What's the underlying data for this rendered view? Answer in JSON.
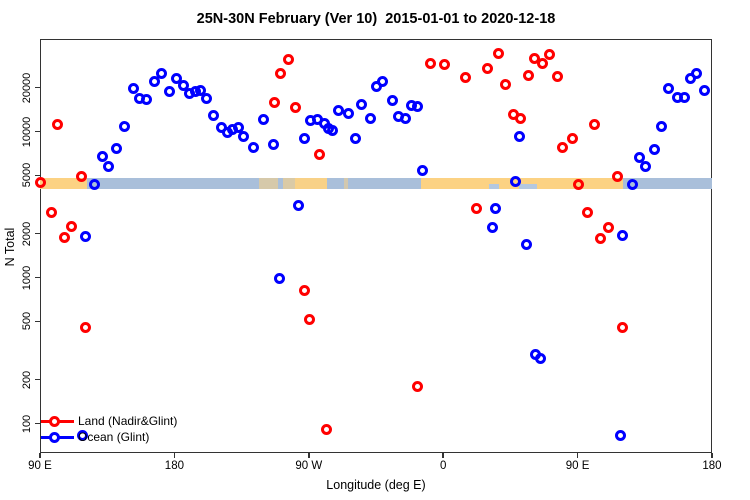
{
  "title": "25N-30N February (Ver 10)  2015-01-01 to 2020-12-18",
  "colors": {
    "land": "#ff0000",
    "ocean": "#0000ff",
    "band_ocean": "#a9bfda",
    "band_land": "#fcd283",
    "band_notch": "#b4c8e0",
    "axis": "#333333"
  },
  "legend": {
    "items": [
      {
        "label": "Land (Nadir&Glint)",
        "color": "#ff0000"
      },
      {
        "label": "Ocean (Glint)",
        "color": "#0000ff"
      }
    ]
  },
  "map_band": {
    "description": "land/ocean map strip at 25N-30N drawn across plot near N=5000",
    "lon_range": [
      90,
      540
    ],
    "land_segments": [
      {
        "from": 90,
        "to": 121.5,
        "opacity": 1
      },
      {
        "from": 236.7,
        "to": 249.4,
        "opacity": 0.55
      },
      {
        "from": 252.7,
        "to": 260.8,
        "opacity": 0.6
      },
      {
        "from": 260.8,
        "to": 282.2,
        "opacity": 0.95
      },
      {
        "from": 293.6,
        "to": 296.3,
        "opacity": 0.5
      },
      {
        "from": 345.1,
        "to": 480.4,
        "opacity": 1
      }
    ],
    "ocean_notches": [
      {
        "from": 390.7,
        "to": 397.4
      },
      {
        "from": 410.8,
        "to": 422.8
      }
    ]
  },
  "chart_data": {
    "type": "scatter",
    "title": "25N-30N February (Ver 10)  2015-01-01 to 2020-12-18",
    "xlabel": "Longitude (deg E)",
    "ylabel": "N Total",
    "x_axis": {
      "min": 90,
      "max": 540,
      "note": "longitude deg E, wraps past 180 and 360"
    },
    "y_axis": {
      "scale": "log10",
      "min": 60,
      "max": 40000
    },
    "x_ticks": [
      {
        "pos": 90,
        "label": "90 E"
      },
      {
        "pos": 180,
        "label": "180"
      },
      {
        "pos": 270,
        "label": "90 W"
      },
      {
        "pos": 360,
        "label": "0"
      },
      {
        "pos": 450,
        "label": "90 E"
      },
      {
        "pos": 540,
        "label": "180"
      }
    ],
    "y_ticks": [
      {
        "value": 100,
        "label": "100"
      },
      {
        "value": 200,
        "label": "200"
      },
      {
        "value": 500,
        "label": "500"
      },
      {
        "value": 1000,
        "label": "1000"
      },
      {
        "value": 2000,
        "label": "2000"
      },
      {
        "value": 5000,
        "label": "5000"
      },
      {
        "value": 10000,
        "label": "10000"
      },
      {
        "value": 20000,
        "label": "20000"
      }
    ],
    "series": [
      {
        "name": "Land (Nadir&Glint)",
        "color": "#ff0000",
        "points": [
          [
            101.9,
            11100
          ],
          [
            90,
            4440
          ],
          [
            117.5,
            4900
          ],
          [
            97.8,
            2770
          ],
          [
            111.2,
            2250
          ],
          [
            106.1,
            1870
          ],
          [
            120.8,
            455
          ],
          [
            256.3,
            31000
          ],
          [
            251.2,
            25100
          ],
          [
            247.2,
            15800
          ],
          [
            261.2,
            14600
          ],
          [
            277.5,
            6930
          ],
          [
            267.2,
            817
          ],
          [
            270.6,
            518
          ],
          [
            281.7,
            91
          ],
          [
            343.1,
            179
          ],
          [
            351.6,
            29000
          ],
          [
            361.2,
            28700
          ],
          [
            375.1,
            23500
          ],
          [
            382,
            2980
          ],
          [
            389.7,
            27200
          ],
          [
            396.7,
            34400
          ],
          [
            401.9,
            21100
          ],
          [
            406.8,
            13100
          ],
          [
            411.7,
            12200
          ],
          [
            417.3,
            24100
          ],
          [
            421.3,
            31400
          ],
          [
            426.4,
            29000
          ],
          [
            430.9,
            33600
          ],
          [
            436.4,
            23800
          ],
          [
            440.2,
            7800
          ],
          [
            446.5,
            8930
          ],
          [
            450.7,
            4320
          ],
          [
            456.3,
            2770
          ],
          [
            461,
            11100
          ],
          [
            465.2,
            1860
          ],
          [
            471,
            2210
          ],
          [
            476.6,
            4930
          ],
          [
            480.4,
            458
          ]
        ]
      },
      {
        "name": "Ocean (Glint)",
        "color": "#0000ff",
        "points": [
          [
            118.6,
            83
          ],
          [
            120.8,
            1920
          ],
          [
            126.4,
            4310
          ],
          [
            132,
            6710
          ],
          [
            135.7,
            5740
          ],
          [
            141.4,
            7590
          ],
          [
            146.9,
            10900
          ],
          [
            152.5,
            19600
          ],
          [
            156.3,
            16700
          ],
          [
            161.4,
            16500
          ],
          [
            167,
            21900
          ],
          [
            171.5,
            24900
          ],
          [
            177,
            18700
          ],
          [
            181.1,
            23100
          ],
          [
            186.4,
            20600
          ],
          [
            190.4,
            18100
          ],
          [
            194.3,
            18700
          ],
          [
            197.8,
            19000
          ],
          [
            201.6,
            16700
          ],
          [
            206.5,
            12800
          ],
          [
            211.7,
            10600
          ],
          [
            215.4,
            9770
          ],
          [
            219,
            10400
          ],
          [
            222.8,
            10600
          ],
          [
            226.6,
            9210
          ],
          [
            232.8,
            7800
          ],
          [
            239.7,
            12000
          ],
          [
            246.2,
            8090
          ],
          [
            250.5,
            982
          ],
          [
            263,
            3100
          ],
          [
            267.2,
            8990
          ],
          [
            271.2,
            11900
          ],
          [
            275.7,
            12100
          ],
          [
            280.6,
            11400
          ],
          [
            282.9,
            10500
          ],
          [
            286.2,
            10100
          ],
          [
            290.2,
            13900
          ],
          [
            296.9,
            13200
          ],
          [
            301.4,
            8990
          ],
          [
            305.2,
            15400
          ],
          [
            311,
            12200
          ],
          [
            315.5,
            20400
          ],
          [
            319.2,
            21900
          ],
          [
            325.9,
            16300
          ],
          [
            330.4,
            12700
          ],
          [
            334.9,
            12200
          ],
          [
            338.9,
            15000
          ],
          [
            342.7,
            14900
          ],
          [
            346,
            5390
          ],
          [
            393.1,
            2200
          ],
          [
            394.7,
            2980
          ],
          [
            408.6,
            4530
          ],
          [
            410.8,
            9210
          ],
          [
            416,
            1690
          ],
          [
            422,
            298
          ],
          [
            425.3,
            278
          ],
          [
            478.9,
            83
          ],
          [
            480.4,
            1930
          ],
          [
            486.7,
            4310
          ],
          [
            491.6,
            6660
          ],
          [
            495.4,
            5740
          ],
          [
            501.2,
            7500
          ],
          [
            506.1,
            10900
          ],
          [
            511.2,
            19800
          ],
          [
            517,
            17000
          ],
          [
            521.9,
            17100
          ],
          [
            525.7,
            22900
          ],
          [
            529.7,
            24800
          ],
          [
            534.8,
            19200
          ]
        ]
      }
    ]
  }
}
